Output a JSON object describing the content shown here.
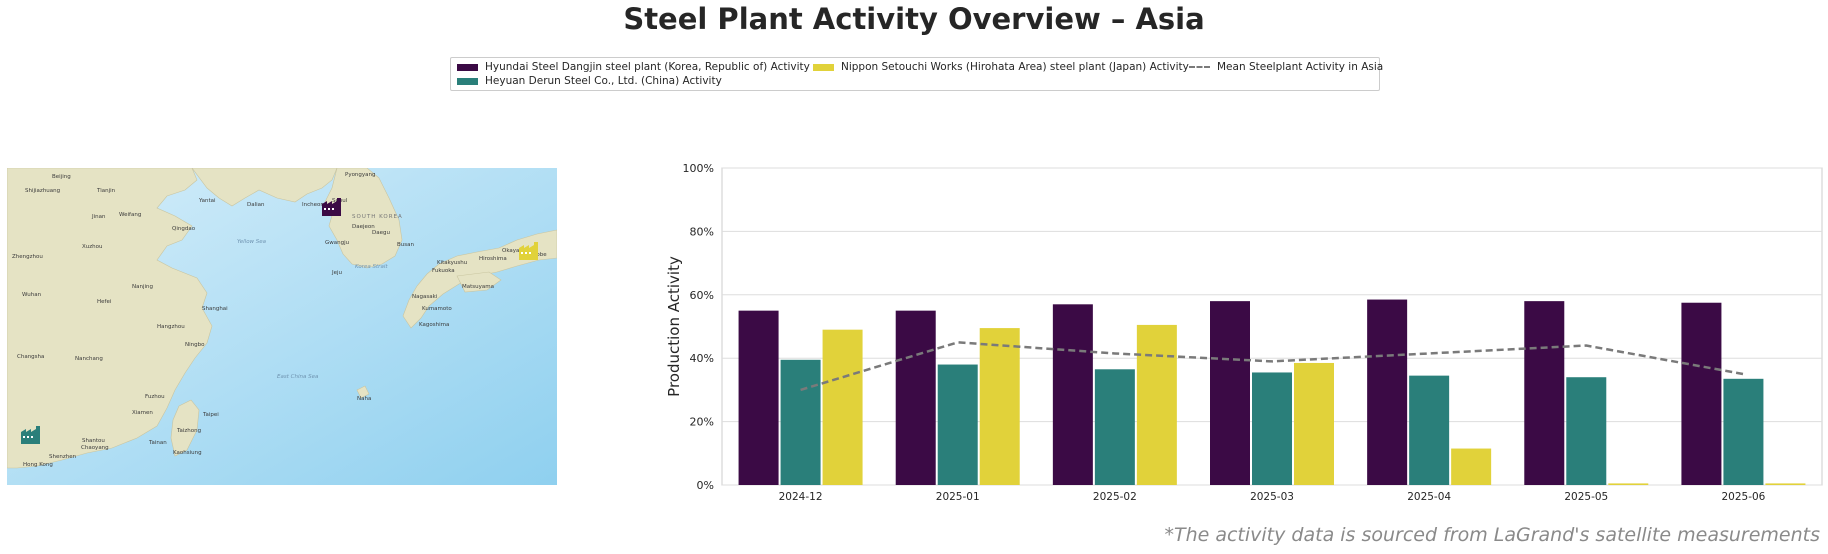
{
  "title": "Steel Plant Activity Overview – Asia",
  "footnote": "*The activity data is sourced from LaGrand's satellite measurements",
  "legend": {
    "hyundai": "Hyundai Steel Dangjin steel plant (Korea, Republic of) Activity",
    "heyuan": "Heyuan Derun Steel Co., Ltd. (China) Activity",
    "nippon": "Nippon Setouchi Works (Hirohata Area) steel plant (Japan) Activity",
    "mean": "Mean Steelplant Activity in Asia"
  },
  "colors": {
    "hyundai": "#3b0a45",
    "heyuan": "#2a7f7a",
    "nippon": "#e1d23a",
    "mean": "#7a7a7a"
  },
  "map": {
    "labels": [
      "Pyongyang",
      "Incheon",
      "Seoul",
      "SOUTH KOREA",
      "Daejeon",
      "Daegu",
      "Busan",
      "Gwangju",
      "Jeju",
      "Beijing",
      "Tianjin",
      "Shijiazhuang",
      "Jinan",
      "Weifang",
      "Qingdao",
      "Yantai",
      "Dalian",
      "Zhengzhou",
      "Xuzhou",
      "Hefei",
      "Nanjing",
      "Shanghai",
      "Hangzhou",
      "Ningbo",
      "Wuhan",
      "Changsha",
      "Nanchang",
      "Fuzhou",
      "Xiamen",
      "Taipei",
      "Taizhong",
      "Tainan",
      "Kaohsiung",
      "Shantou",
      "Chaoyang",
      "Shenzhen",
      "Hong Kong",
      "Fukuoka",
      "Kitakyushu",
      "Hiroshima",
      "Okayama",
      "Kobe",
      "Yellow Sea",
      "East China Sea",
      "Korea Strait",
      "Naha",
      "Matsuyama",
      "Nagasaki",
      "Kumamoto",
      "Kagoshima"
    ],
    "markers": [
      {
        "name": "Hyundai Steel Dangjin",
        "icon": "factory-icon",
        "series": "hyundai"
      },
      {
        "name": "Nippon Setouchi Works (Hirohata Area)",
        "icon": "factory-icon",
        "series": "nippon"
      },
      {
        "name": "Heyuan Derun Steel",
        "icon": "factory-icon",
        "series": "heyuan"
      }
    ]
  },
  "chart_data": {
    "type": "bar",
    "categories": [
      "2024-12",
      "2025-01",
      "2025-02",
      "2025-03",
      "2025-04",
      "2025-05",
      "2025-06"
    ],
    "series": [
      {
        "name": "Hyundai Steel Dangjin steel plant (Korea, Republic of) Activity",
        "key": "hyundai",
        "values": [
          55,
          55,
          57,
          58,
          58.5,
          58,
          57.5
        ]
      },
      {
        "name": "Heyuan Derun Steel Co., Ltd. (China) Activity",
        "key": "heyuan",
        "values": [
          39.5,
          38,
          36.5,
          35.5,
          34.5,
          34,
          33.5
        ]
      },
      {
        "name": "Nippon Setouchi Works (Hirohata Area) steel plant (Japan) Activity",
        "key": "nippon",
        "values": [
          49,
          49.5,
          50.5,
          38.5,
          11.5,
          0.5,
          0.5
        ]
      }
    ],
    "line": {
      "name": "Mean Steelplant Activity in Asia",
      "key": "mean",
      "values": [
        30,
        45,
        41.5,
        39,
        41.5,
        44,
        35
      ]
    },
    "ylabel": "Production Activity",
    "ylim": [
      0,
      100
    ],
    "yticks": [
      0,
      20,
      40,
      60,
      80,
      100
    ],
    "ytick_labels": [
      "0%",
      "20%",
      "40%",
      "60%",
      "80%",
      "100%"
    ],
    "grid": true
  }
}
